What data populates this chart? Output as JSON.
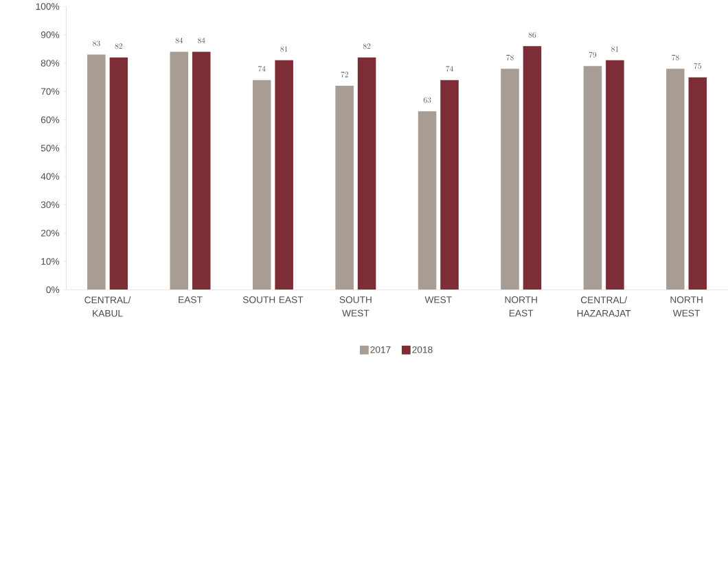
{
  "chart_data": {
    "type": "bar",
    "categories": [
      "CENTRAL/ KABUL",
      "EAST",
      "SOUTH EAST",
      "SOUTH WEST",
      "WEST",
      "NORTH EAST",
      "CENTRAL/ HAZARAJAT",
      "NORTH WEST"
    ],
    "series": [
      {
        "name": "2017",
        "color": "#a89d94",
        "values": [
          83,
          84,
          74,
          72,
          63,
          78,
          79,
          78
        ]
      },
      {
        "name": "2018",
        "color": "#7d2d35",
        "values": [
          82,
          84,
          81,
          82,
          74,
          86,
          81,
          75
        ]
      }
    ],
    "ylim": [
      0,
      100
    ],
    "yticks": [
      {
        "value": 0,
        "label": "0%"
      },
      {
        "value": 10,
        "label": "10%"
      },
      {
        "value": 20,
        "label": "20%"
      },
      {
        "value": 30,
        "label": "30%"
      },
      {
        "value": 40,
        "label": "40%"
      },
      {
        "value": 50,
        "label": "50%"
      },
      {
        "value": 60,
        "label": "60%"
      },
      {
        "value": 70,
        "label": "70%"
      },
      {
        "value": 80,
        "label": "80%"
      },
      {
        "value": 90,
        "label": "90%"
      },
      {
        "value": 100,
        "label": "100%"
      }
    ],
    "grid": false,
    "data_labels": true,
    "legend": "bottom"
  }
}
